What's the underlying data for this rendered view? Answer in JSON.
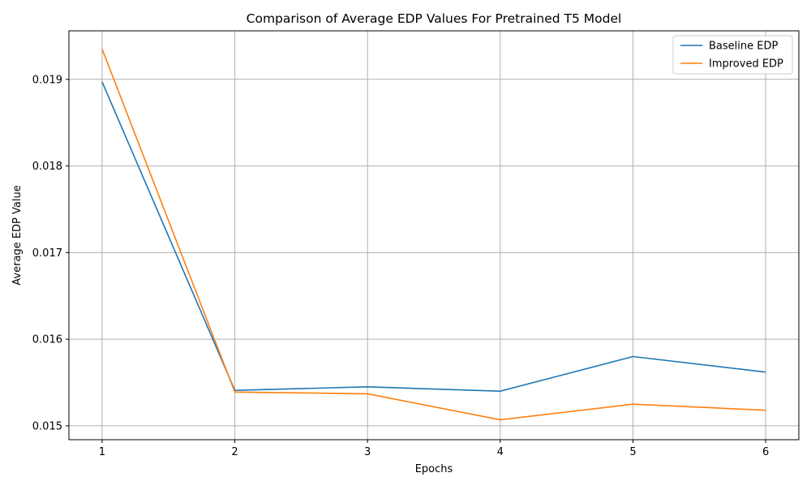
{
  "chart_data": {
    "type": "line",
    "title": "Comparison of Average EDP Values For Pretrained T5 Model",
    "xlabel": "Epochs",
    "ylabel": "Average EDP Value",
    "x": [
      1,
      2,
      3,
      4,
      5,
      6
    ],
    "x_ticks": [
      "1",
      "2",
      "3",
      "4",
      "5",
      "6"
    ],
    "y_ticks": [
      "0.015",
      "0.016",
      "0.017",
      "0.018",
      "0.019"
    ],
    "y_tick_values": [
      0.015,
      0.016,
      0.017,
      0.018,
      0.019
    ],
    "xlim": [
      0.75,
      6.25
    ],
    "ylim": [
      0.01484,
      0.01956
    ],
    "grid": true,
    "legend_position": "top-right",
    "series": [
      {
        "name": "Baseline EDP",
        "color": "#1f77b4",
        "values": [
          0.01897,
          0.01541,
          0.01545,
          0.0154,
          0.0158,
          0.01562
        ]
      },
      {
        "name": "Improved EDP",
        "color": "#ff7f0e",
        "values": [
          0.01935,
          0.01539,
          0.01537,
          0.01507,
          0.01525,
          0.01518
        ]
      }
    ]
  }
}
